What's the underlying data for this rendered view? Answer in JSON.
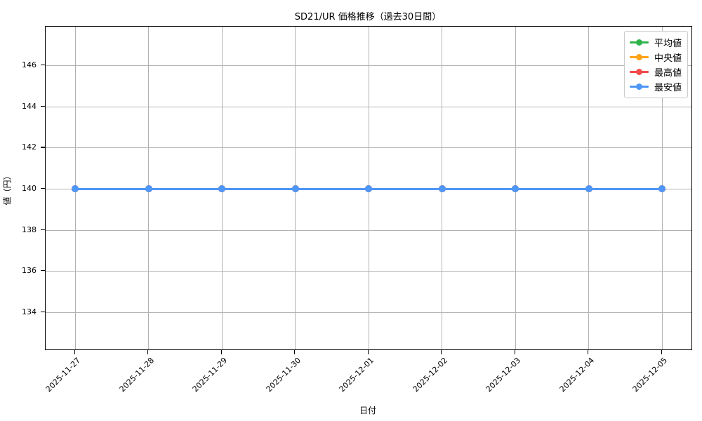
{
  "chart_data": {
    "type": "line",
    "title": "SD21/UR 価格推移（過去30日間）",
    "xlabel": "日付",
    "ylabel": "値（円）",
    "x": [
      "2025-11-27",
      "2025-11-28",
      "2025-11-29",
      "2025-11-30",
      "2025-12-01",
      "2025-12-02",
      "2025-12-03",
      "2025-12-04",
      "2025-12-05"
    ],
    "series": [
      {
        "name": "平均値",
        "color": "#2eb34b",
        "values": [
          140,
          140,
          140,
          140,
          140,
          140,
          140,
          140,
          140
        ]
      },
      {
        "name": "中央値",
        "color": "#ffa318",
        "values": [
          140,
          140,
          140,
          140,
          140,
          140,
          140,
          140,
          140
        ]
      },
      {
        "name": "最高値",
        "color": "#f24a4a",
        "values": [
          140,
          140,
          140,
          140,
          140,
          140,
          140,
          140,
          140
        ]
      },
      {
        "name": "最安値",
        "color": "#4e96f7",
        "values": [
          140,
          140,
          140,
          140,
          140,
          140,
          140,
          140,
          140
        ]
      }
    ],
    "yticks": [
      134,
      136,
      138,
      140,
      142,
      144,
      146
    ],
    "ylim": [
      132.2,
      147.9
    ],
    "grid": true,
    "grid_color": "#b3b3b3",
    "legend_position": "upper right"
  }
}
